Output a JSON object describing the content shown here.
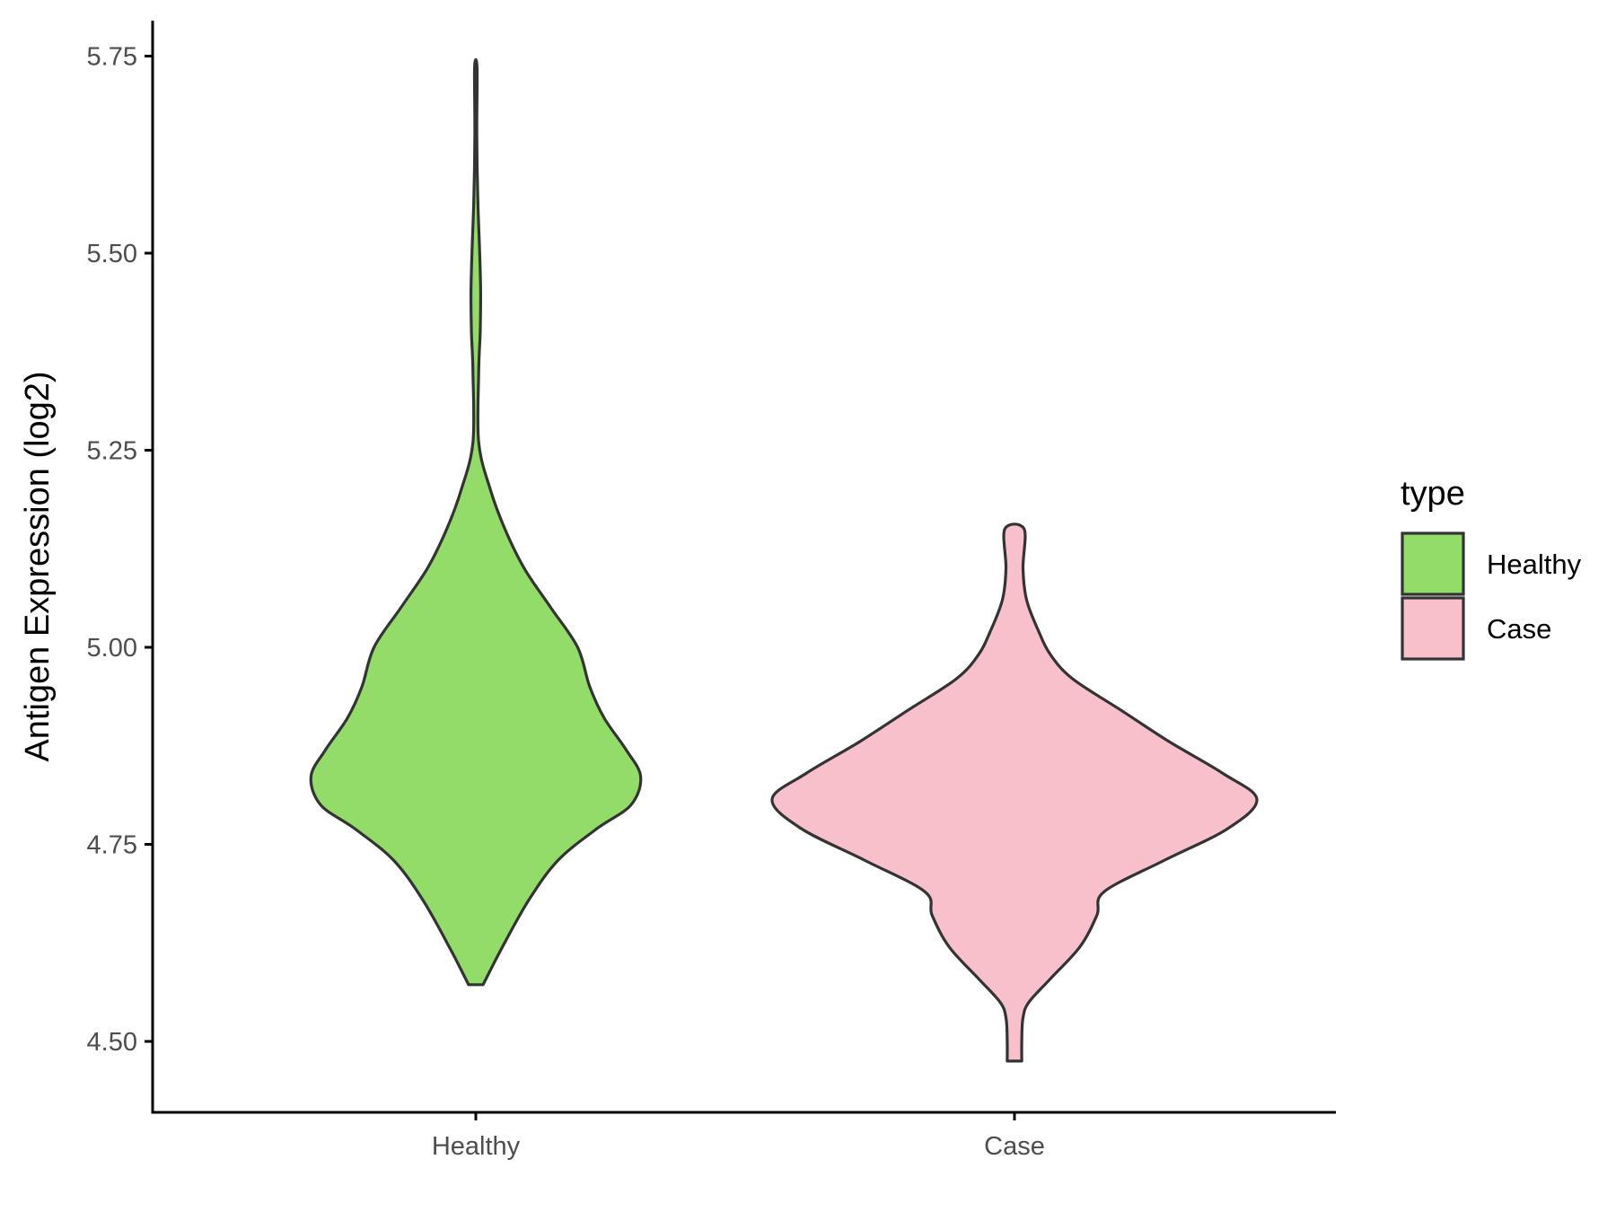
{
  "chart_data": {
    "type": "violin",
    "title": "",
    "xlabel": "",
    "ylabel": "Antigen Expression (log2)",
    "ylim": [
      4.41,
      5.795
    ],
    "yticks": [
      "4.50",
      "4.75",
      "5.00",
      "5.25",
      "5.50",
      "5.75"
    ],
    "categories": [
      "Healthy",
      "Case"
    ],
    "grid": false,
    "legend": {
      "title": "type",
      "position": "right",
      "entries": [
        "Healthy",
        "Case"
      ]
    },
    "series": [
      {
        "name": "Healthy",
        "color": "#93dc6a",
        "outline": "#333333",
        "min": 4.572,
        "max": 5.735,
        "density_profile": [
          [
            4.572,
            0.03
          ],
          [
            4.62,
            0.11
          ],
          [
            4.68,
            0.22
          ],
          [
            4.73,
            0.34
          ],
          [
            4.77,
            0.5
          ],
          [
            4.8,
            0.64
          ],
          [
            4.836,
            0.68
          ],
          [
            4.87,
            0.62
          ],
          [
            4.91,
            0.53
          ],
          [
            4.95,
            0.47
          ],
          [
            5.0,
            0.42
          ],
          [
            5.05,
            0.31
          ],
          [
            5.1,
            0.2
          ],
          [
            5.15,
            0.12
          ],
          [
            5.2,
            0.06
          ],
          [
            5.26,
            0.012
          ],
          [
            5.35,
            0.012
          ],
          [
            5.4,
            0.018
          ],
          [
            5.45,
            0.02
          ],
          [
            5.5,
            0.016
          ],
          [
            5.57,
            0.008
          ],
          [
            5.65,
            0.004
          ],
          [
            5.735,
            0.005
          ]
        ]
      },
      {
        "name": "Case",
        "color": "#f8c0cb",
        "outline": "#333333",
        "min": 4.475,
        "max": 5.15,
        "density_profile": [
          [
            4.475,
            0.03
          ],
          [
            4.5,
            0.03
          ],
          [
            4.53,
            0.035
          ],
          [
            4.55,
            0.06
          ],
          [
            4.58,
            0.15
          ],
          [
            4.62,
            0.27
          ],
          [
            4.66,
            0.34
          ],
          [
            4.69,
            0.37
          ],
          [
            4.73,
            0.62
          ],
          [
            4.77,
            0.88
          ],
          [
            4.807,
            1.0
          ],
          [
            4.84,
            0.86
          ],
          [
            4.88,
            0.64
          ],
          [
            4.92,
            0.44
          ],
          [
            4.96,
            0.24
          ],
          [
            4.99,
            0.15
          ],
          [
            5.02,
            0.1
          ],
          [
            5.06,
            0.05
          ],
          [
            5.1,
            0.035
          ],
          [
            5.15,
            0.04
          ]
        ]
      }
    ]
  }
}
